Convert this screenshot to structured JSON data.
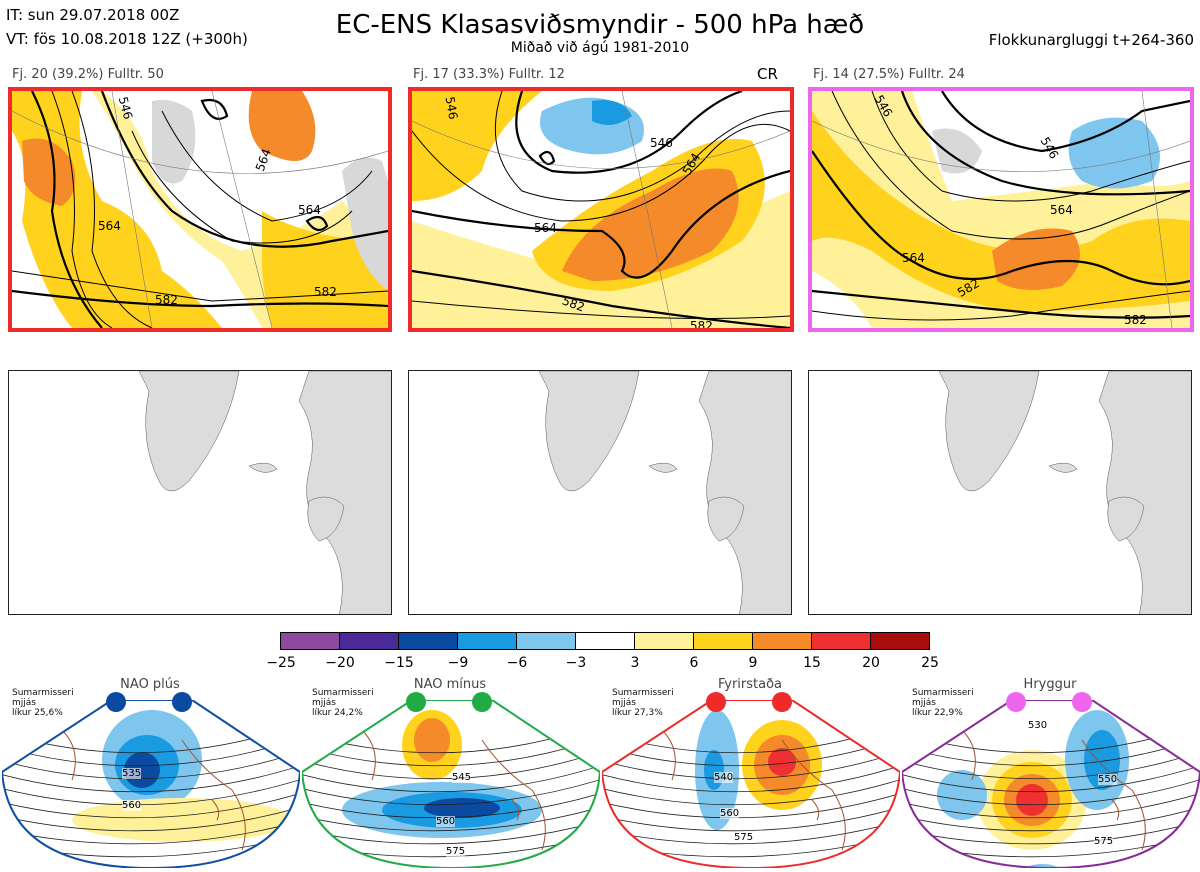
{
  "header": {
    "it_line": "IT: sun 29.07.2018 00Z",
    "vt_line": "VT: fös 10.08.2018 12Z  (+300h)",
    "title": "EC-ENS Klasasviðsmyndir - 500 hPa hæð",
    "subtitle": "Miðað við ágú 1981-2010",
    "window": "Flokkunargluggi t+264-360"
  },
  "clusters": [
    {
      "label": "Fj. 20 (39.2%)   Fulltr. 50",
      "border_color": "#ee2a2a",
      "contours": [
        "546",
        "564",
        "564",
        "564",
        "582",
        "582"
      ],
      "flag": ""
    },
    {
      "label": "Fj. 17 (33.3%)   Fulltr. 12",
      "border_color": "#ee2a2a",
      "contours": [
        "546",
        "546",
        "564",
        "564",
        "582",
        "582"
      ],
      "flag": "CR"
    },
    {
      "label": "Fj. 14 (27.5%)   Fulltr. 24",
      "border_color": "#ee66ee",
      "contours": [
        "546",
        "546",
        "564",
        "564",
        "582",
        "582"
      ],
      "flag": ""
    }
  ],
  "colorbar": {
    "colors": [
      "#8e4a9e",
      "#4a2a96",
      "#0a4aa0",
      "#1a9ae0",
      "#7ec6ee",
      "#ffffff",
      "#fff19a",
      "#ffd21e",
      "#f58a2a",
      "#ee3030",
      "#a80c0c"
    ],
    "ticks": [
      "−25",
      "−20",
      "−15",
      "−9",
      "−6",
      "−3",
      "3",
      "6",
      "9",
      "15",
      "20",
      "25"
    ]
  },
  "regimes": [
    {
      "name": "NAO plús",
      "info_line1": "Sumarmisseri",
      "info_line2": "mjjás",
      "info_line3": "líkur 25,6%",
      "dot_color": "#0a4aa0",
      "border_color": "#1050a0",
      "labels": [
        "535",
        "560"
      ]
    },
    {
      "name": "NAO mínus",
      "info_line1": "Sumarmisseri",
      "info_line2": "mjjás",
      "info_line3": "líkur 24,2%",
      "dot_color": "#22aa44",
      "border_color": "#22aa44",
      "labels": [
        "545",
        "560",
        "575"
      ]
    },
    {
      "name": "Fyrirstaða",
      "info_line1": "Sumarmisseri",
      "info_line2": "mjjás",
      "info_line3": "líkur 27,3%",
      "dot_color": "#ee2a2a",
      "border_color": "#ee2a2a",
      "labels": [
        "540",
        "560",
        "575"
      ]
    },
    {
      "name": "Hryggur",
      "info_line1": "Sumarmisseri",
      "info_line2": "mjjás",
      "info_line3": "líkur 22,9%",
      "dot_color": "#ee66ee",
      "border_color": "#882a9a",
      "labels": [
        "530",
        "550",
        "575"
      ]
    }
  ]
}
